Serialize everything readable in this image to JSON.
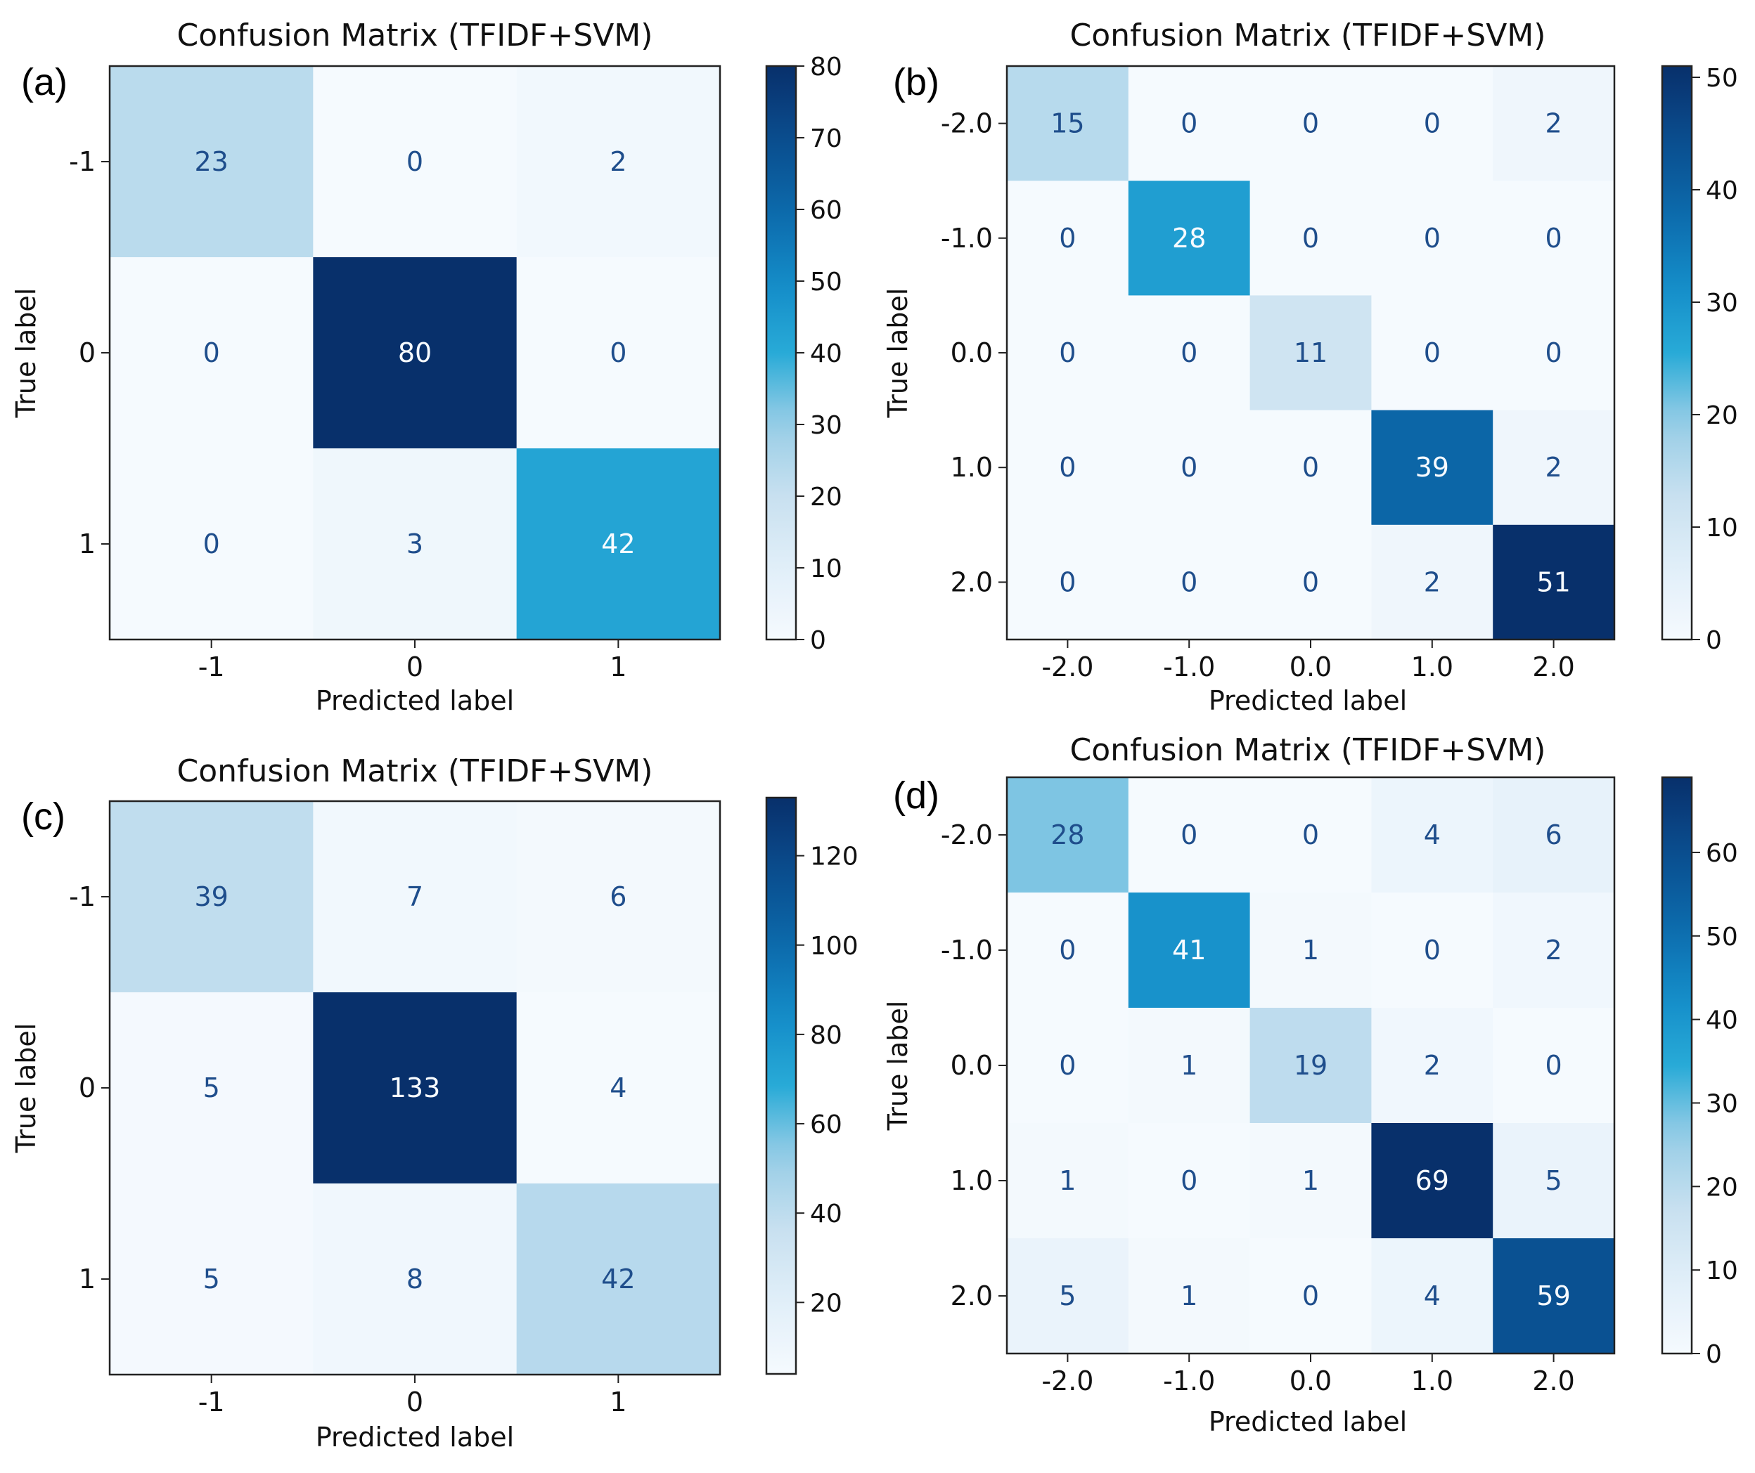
{
  "chart_data": [
    {
      "type": "heatmap",
      "panel_label": "(a)",
      "title": "Confusion Matrix (TFIDF+SVM)",
      "xlabel": "Predicted label",
      "ylabel": "True label",
      "x_categories": [
        "-1",
        "0",
        "1"
      ],
      "y_categories": [
        "-1",
        "0",
        "1"
      ],
      "values": [
        [
          23,
          0,
          2
        ],
        [
          0,
          80,
          0
        ],
        [
          0,
          3,
          42
        ]
      ],
      "colormap": "Blues",
      "colorbar": {
        "range": [
          0,
          80
        ],
        "ticks": [
          0,
          10,
          20,
          30,
          40,
          50,
          60,
          70,
          80
        ]
      }
    },
    {
      "type": "heatmap",
      "panel_label": "(b)",
      "title": "Confusion Matrix (TFIDF+SVM)",
      "xlabel": "Predicted label",
      "ylabel": "True label",
      "x_categories": [
        "-2.0",
        "-1.0",
        "0.0",
        "1.0",
        "2.0"
      ],
      "y_categories": [
        "-2.0",
        "-1.0",
        "0.0",
        "1.0",
        "2.0"
      ],
      "values": [
        [
          15,
          0,
          0,
          0,
          2
        ],
        [
          0,
          28,
          0,
          0,
          0
        ],
        [
          0,
          0,
          11,
          0,
          0
        ],
        [
          0,
          0,
          0,
          39,
          2
        ],
        [
          0,
          0,
          0,
          2,
          51
        ]
      ],
      "colormap": "Blues",
      "colorbar": {
        "range": [
          0,
          51
        ],
        "ticks": [
          0,
          10,
          20,
          30,
          40,
          50
        ]
      }
    },
    {
      "type": "heatmap",
      "panel_label": "(c)",
      "title": "Confusion Matrix (TFIDF+SVM)",
      "xlabel": "Predicted label",
      "ylabel": "True label",
      "x_categories": [
        "-1",
        "0",
        "1"
      ],
      "y_categories": [
        "-1",
        "0",
        "1"
      ],
      "values": [
        [
          39,
          7,
          6
        ],
        [
          5,
          133,
          4
        ],
        [
          5,
          8,
          42
        ]
      ],
      "colormap": "Blues",
      "colorbar": {
        "range": [
          4,
          133
        ],
        "ticks": [
          20,
          40,
          60,
          80,
          100,
          120
        ]
      }
    },
    {
      "type": "heatmap",
      "panel_label": "(d)",
      "title": "Confusion Matrix (TFIDF+SVM)",
      "xlabel": "Predicted label",
      "ylabel": "True label",
      "x_categories": [
        "-2.0",
        "-1.0",
        "0.0",
        "1.0",
        "2.0"
      ],
      "y_categories": [
        "-2.0",
        "-1.0",
        "0.0",
        "1.0",
        "2.0"
      ],
      "values": [
        [
          28,
          0,
          0,
          4,
          6
        ],
        [
          0,
          41,
          1,
          0,
          2
        ],
        [
          0,
          1,
          19,
          2,
          0
        ],
        [
          1,
          0,
          1,
          69,
          5
        ],
        [
          5,
          1,
          0,
          4,
          59
        ]
      ],
      "colormap": "Blues",
      "colorbar": {
        "range": [
          0,
          69
        ],
        "ticks": [
          0,
          10,
          20,
          30,
          40,
          50,
          60
        ]
      }
    }
  ]
}
